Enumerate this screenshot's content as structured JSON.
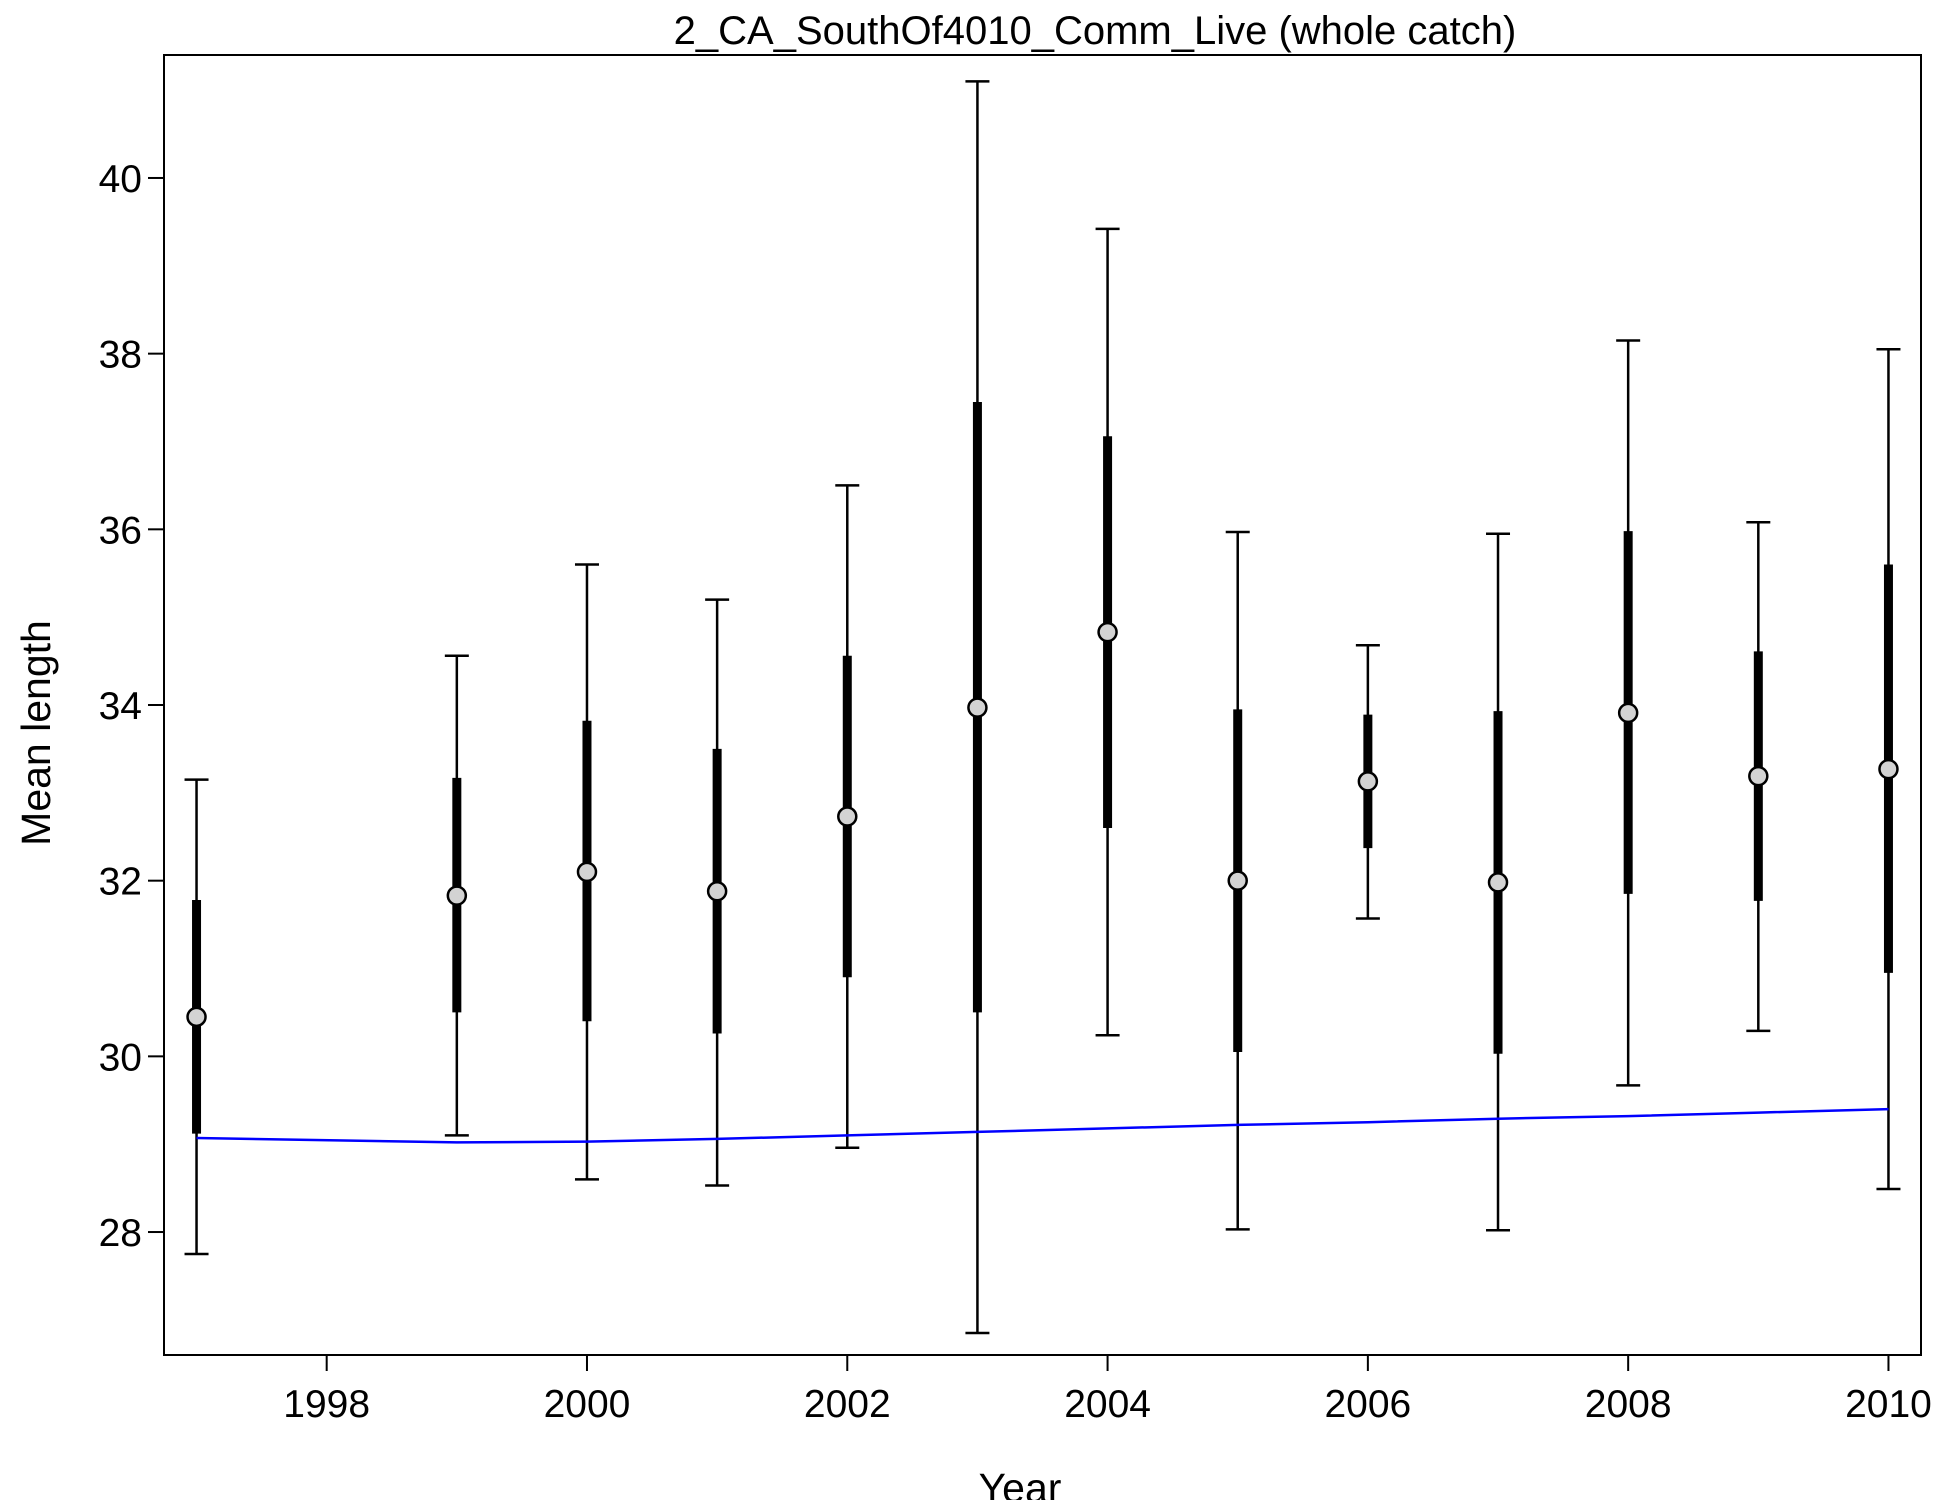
{
  "chart_data": {
    "type": "scatter",
    "title": "2_CA_SouthOf4010_Comm_Live (whole catch)",
    "xlabel": "Year",
    "ylabel": "Mean length",
    "xlim": [
      1996.75,
      2010.25
    ],
    "ylim": [
      26.6,
      41.4
    ],
    "x_ticks": [
      1998,
      2000,
      2002,
      2004,
      2006,
      2008,
      2010
    ],
    "y_ticks": [
      28,
      30,
      32,
      34,
      36,
      38,
      40
    ],
    "grid": false,
    "observed": {
      "point_fill": "#d3d3d3",
      "points": [
        {
          "year": 1997,
          "mean": 30.45,
          "inner_low": 29.12,
          "inner_high": 31.78,
          "outer_low": 27.75,
          "outer_high": 33.15
        },
        {
          "year": 1999,
          "mean": 31.83,
          "inner_low": 30.5,
          "inner_high": 33.17,
          "outer_low": 29.1,
          "outer_high": 34.56
        },
        {
          "year": 2000,
          "mean": 32.1,
          "inner_low": 30.4,
          "inner_high": 33.82,
          "outer_low": 28.6,
          "outer_high": 35.6
        },
        {
          "year": 2001,
          "mean": 31.88,
          "inner_low": 30.26,
          "inner_high": 33.5,
          "outer_low": 28.53,
          "outer_high": 35.2
        },
        {
          "year": 2002,
          "mean": 32.73,
          "inner_low": 30.9,
          "inner_high": 34.56,
          "outer_low": 28.96,
          "outer_high": 36.5
        },
        {
          "year": 2003,
          "mean": 33.97,
          "inner_low": 30.5,
          "inner_high": 37.45,
          "outer_low": 26.85,
          "outer_high": 41.1
        },
        {
          "year": 2004,
          "mean": 34.83,
          "inner_low": 32.6,
          "inner_high": 37.06,
          "outer_low": 30.24,
          "outer_high": 39.42
        },
        {
          "year": 2005,
          "mean": 32.0,
          "inner_low": 30.05,
          "inner_high": 33.95,
          "outer_low": 28.03,
          "outer_high": 35.97
        },
        {
          "year": 2006,
          "mean": 33.13,
          "inner_low": 32.37,
          "inner_high": 33.89,
          "outer_low": 31.57,
          "outer_high": 34.68
        },
        {
          "year": 2007,
          "mean": 31.98,
          "inner_low": 30.03,
          "inner_high": 33.93,
          "outer_low": 28.02,
          "outer_high": 35.95
        },
        {
          "year": 2008,
          "mean": 33.91,
          "inner_low": 31.85,
          "inner_high": 35.98,
          "outer_low": 29.67,
          "outer_high": 38.15
        },
        {
          "year": 2009,
          "mean": 33.19,
          "inner_low": 31.77,
          "inner_high": 34.61,
          "outer_low": 30.29,
          "outer_high": 36.08
        },
        {
          "year": 2010,
          "mean": 33.27,
          "inner_low": 30.95,
          "inner_high": 35.6,
          "outer_low": 28.49,
          "outer_high": 38.05
        }
      ]
    },
    "expected": {
      "color": "#0000ff",
      "x": [
        1997,
        1999,
        2000,
        2001,
        2002,
        2003,
        2004,
        2005,
        2006,
        2007,
        2008,
        2009,
        2010
      ],
      "y": [
        29.07,
        29.02,
        29.03,
        29.06,
        29.1,
        29.14,
        29.18,
        29.22,
        29.25,
        29.29,
        29.32,
        29.36,
        29.4
      ]
    }
  }
}
